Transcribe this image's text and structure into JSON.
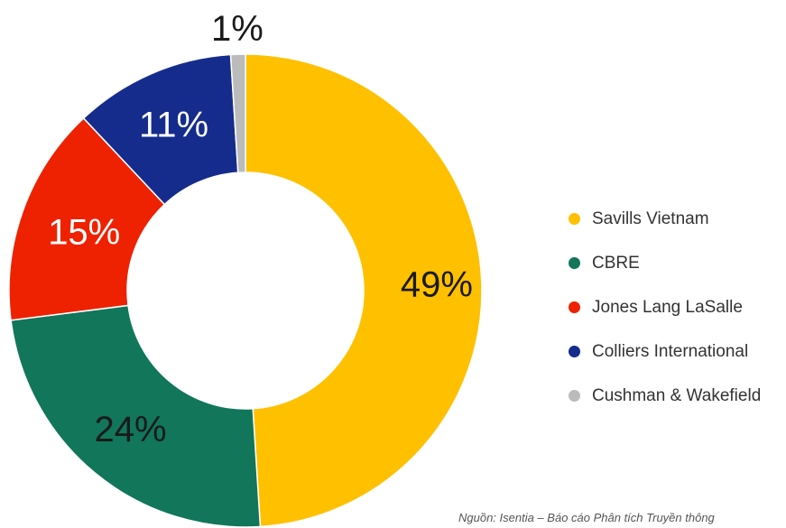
{
  "chart_data": {
    "type": "pie",
    "donut": true,
    "title": "",
    "categories": [
      "Savills Vietnam",
      "CBRE",
      "Jones Lang LaSalle",
      "Colliers International",
      "Cushman & Wakefield"
    ],
    "values": [
      49,
      24,
      15,
      11,
      1
    ],
    "data_labels": [
      "49%",
      "24%",
      "15%",
      "11%",
      "1%"
    ],
    "colors": [
      "#FFC000",
      "#11765A",
      "#EE2200",
      "#162C8C",
      "#BBBBBB"
    ],
    "label_colors": [
      "#1a1a1a",
      "#1a1a1a",
      "#ffffff",
      "#ffffff",
      "#1a1a1a"
    ],
    "start_angle_deg": 0,
    "direction": "clockwise",
    "legend_position": "right"
  },
  "legend": {
    "items": [
      {
        "label": "Savills Vietnam",
        "color": "#FFC000"
      },
      {
        "label": "CBRE",
        "color": "#11765A"
      },
      {
        "label": "Jones Lang LaSalle",
        "color": "#EE2200"
      },
      {
        "label": "Colliers International",
        "color": "#162C8C"
      },
      {
        "label": "Cushman & Wakefield",
        "color": "#BBBBBB"
      }
    ]
  },
  "source_note": "Nguồn: Isentia – Báo cáo Phân tích Truyền thông"
}
